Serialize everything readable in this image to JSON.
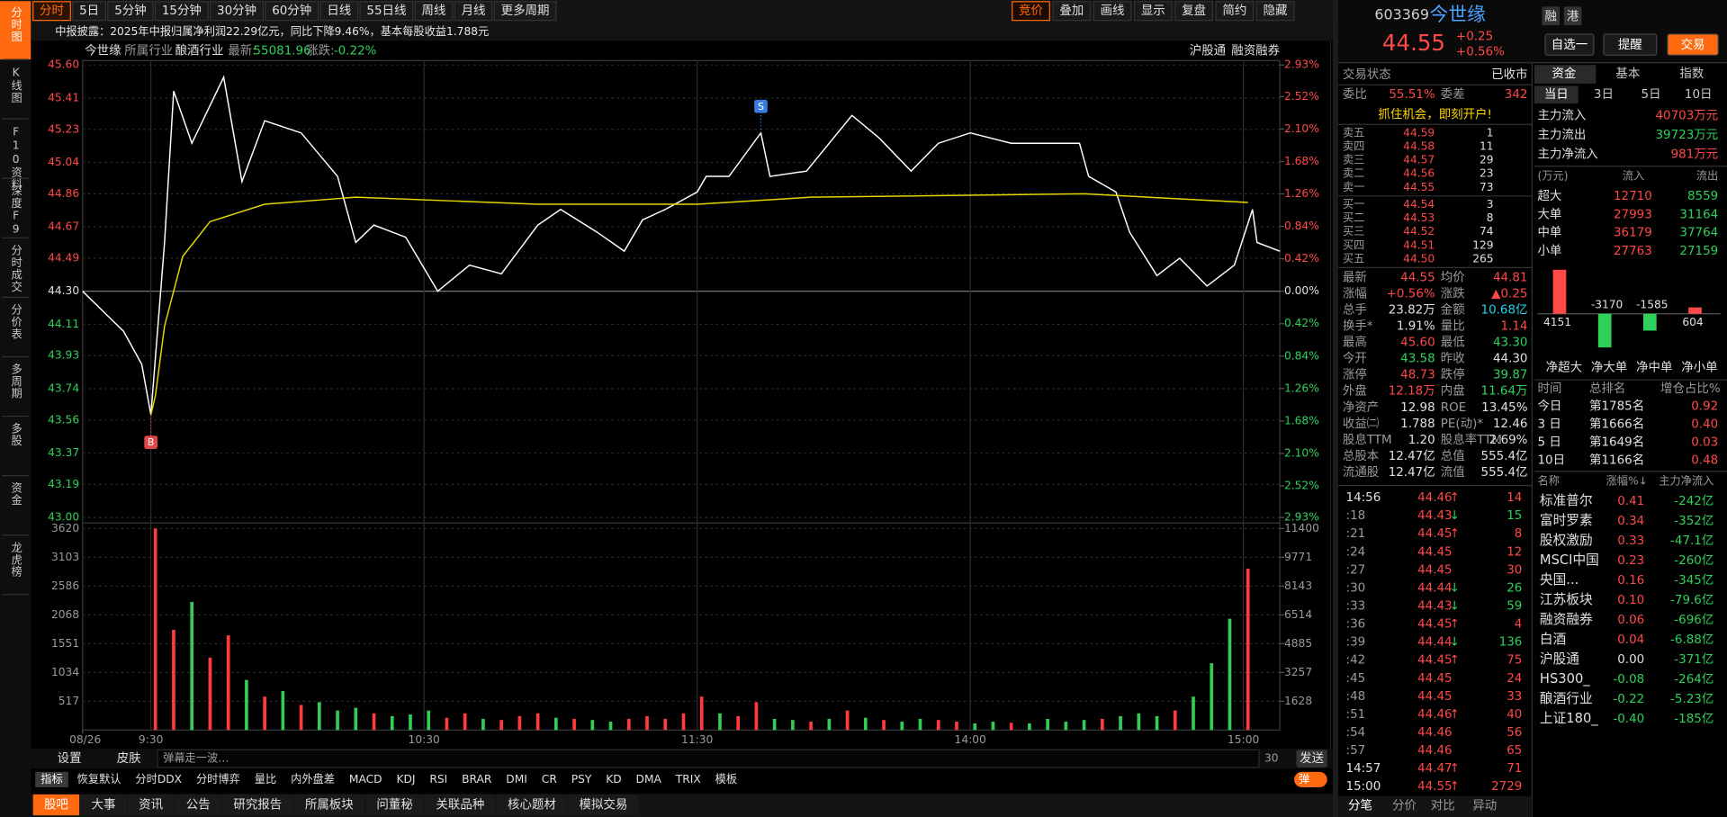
{
  "toolbar": {
    "periods": [
      "分时",
      "5日",
      "5分钟",
      "15分钟",
      "30分钟",
      "60分钟",
      "日线",
      "55日线",
      "周线",
      "月线",
      "更多周期"
    ],
    "tools": [
      "竞价",
      "叠加",
      "画线",
      "显示",
      "复盘",
      "简约",
      "隐藏"
    ]
  },
  "sidebar": [
    "分时图",
    "K线图",
    "F10资料",
    "深度F9",
    "分时成交",
    "分价表",
    "多周期",
    "多股",
    "资金",
    "龙虎榜"
  ],
  "news": "中报披露：2025年中报归属净利润22.29亿元，同比下降9.46%，基本每股收益1.788元",
  "chart_header": {
    "stock": "今世缘",
    "industry_label": "所属行业",
    "industry": "酿酒行业",
    "latest_label": "最新:",
    "latest": "55081.96",
    "change_label": "涨跌:",
    "change": "-0.22%",
    "links": [
      "沪股通",
      "融资融券"
    ]
  },
  "chart_data": [
    {
      "type": "line",
      "xlim": [
        0,
        263
      ],
      "xticks": [
        {
          "value": 0,
          "label": "08/26"
        },
        {
          "value": 15,
          "label": "9:30"
        },
        {
          "value": 75,
          "label": "10:30"
        },
        {
          "value": 135,
          "label": "11:30"
        },
        {
          "value": 195,
          "label": "14:00"
        },
        {
          "value": 255,
          "label": "15:00"
        }
      ],
      "ylim": [
        43.0,
        45.6
      ],
      "yticks": [
        {
          "value": 45.6,
          "label": "45.60"
        },
        45.41,
        45.23,
        45.04,
        44.86,
        44.67,
        44.49,
        {
          "value": 44.3,
          "label": "44.30"
        },
        44.11,
        43.93,
        43.74,
        43.56,
        43.37,
        43.19,
        {
          "value": 43.0,
          "label": "43.00"
        }
      ],
      "y2lim": [
        -2.93,
        2.93
      ],
      "y2ticks": [
        {
          "value": 2.93,
          "label": "2.93%"
        },
        {
          "value": 2.52,
          "label": "2.52%"
        },
        {
          "value": 2.1,
          "label": "2.10%"
        },
        {
          "value": 1.68,
          "label": "1.68%"
        },
        {
          "value": 1.26,
          "label": "1.26%"
        },
        {
          "value": 0.84,
          "label": "0.84%"
        },
        {
          "value": 0.42,
          "label": "0.42%"
        },
        {
          "value": 0,
          "label": "0.00%"
        },
        {
          "value": -0.42,
          "label": "0.42%"
        },
        {
          "value": -0.84,
          "label": "0.84%"
        },
        {
          "value": -1.26,
          "label": "1.26%"
        },
        {
          "value": -1.68,
          "label": "1.68%"
        },
        {
          "value": -2.1,
          "label": "2.10%"
        },
        {
          "value": -2.52,
          "label": "2.52%"
        },
        {
          "value": -2.93,
          "label": "2.93%"
        }
      ],
      "grid": true,
      "series": [
        {
          "color": "#ffffff",
          "x": [
            0,
            9,
            13,
            15,
            18,
            20,
            24,
            31,
            35,
            40,
            48,
            56,
            60,
            64,
            71,
            78,
            85,
            92,
            100,
            105,
            113,
            119,
            123,
            128,
            135,
            137,
            142,
            149,
            151,
            159,
            169,
            175,
            182,
            188,
            195,
            204,
            219,
            221,
            227,
            230,
            236,
            241,
            247,
            253,
            257,
            258,
            263
          ],
          "values": [
            44.3,
            44.07,
            43.88,
            43.59,
            44.58,
            45.45,
            45.15,
            45.53,
            44.93,
            45.28,
            45.21,
            44.96,
            44.58,
            44.68,
            44.61,
            44.3,
            44.45,
            44.4,
            44.68,
            44.77,
            44.64,
            44.53,
            44.71,
            44.77,
            44.87,
            44.96,
            44.96,
            45.21,
            44.96,
            44.99,
            45.31,
            45.18,
            44.99,
            45.15,
            45.21,
            45.15,
            45.15,
            44.96,
            44.87,
            44.64,
            44.39,
            44.49,
            44.33,
            44.45,
            44.77,
            44.58,
            44.53
          ]
        },
        {
          "color": "#e6d600",
          "x": [
            15,
            16,
            18,
            22,
            28,
            40,
            60,
            100,
            135,
            160,
            220,
            256
          ],
          "values": [
            43.59,
            43.7,
            44.1,
            44.5,
            44.7,
            44.8,
            44.84,
            44.8,
            44.8,
            44.84,
            44.86,
            44.81
          ]
        }
      ],
      "markers": [
        {
          "label": "B",
          "x": 15,
          "value": 43.59,
          "color": "#e04848"
        },
        {
          "label": "S",
          "x": 149,
          "value": 45.21,
          "color": "#3a7be0"
        }
      ],
      "vlim": [
        0,
        3620
      ],
      "vticks": [
        517,
        1034,
        1551,
        2068,
        2586,
        3103,
        3620
      ],
      "v2lim": [
        0,
        11400
      ],
      "v2ticks": [
        1628,
        3257,
        4885,
        6514,
        8143,
        9771,
        11400
      ],
      "volume": {
        "x": [
          16,
          20,
          24,
          28,
          32,
          36,
          40,
          44,
          48,
          52,
          56,
          60,
          64,
          68,
          72,
          76,
          80,
          84,
          88,
          92,
          96,
          100,
          104,
          108,
          112,
          116,
          120,
          124,
          128,
          132,
          136,
          140,
          144,
          148,
          152,
          156,
          160,
          164,
          168,
          172,
          176,
          180,
          184,
          188,
          192,
          196,
          200,
          204,
          208,
          212,
          216,
          220,
          224,
          228,
          232,
          236,
          240,
          244,
          248,
          252,
          256
        ],
        "values": [
          3620,
          1800,
          2300,
          1300,
          1700,
          900,
          600,
          700,
          450,
          500,
          350,
          400,
          300,
          250,
          280,
          350,
          220,
          300,
          200,
          180,
          250,
          300,
          220,
          200,
          180,
          150,
          200,
          250,
          200,
          300,
          600,
          300,
          250,
          500,
          200,
          180,
          150,
          200,
          350,
          220,
          180,
          150,
          200,
          180,
          150,
          120,
          150,
          130,
          120,
          200,
          150,
          180,
          200,
          250,
          300,
          250,
          350,
          600,
          1200,
          2000,
          2900
        ],
        "colors": [
          "#ff3b3b",
          "#ff3b3b",
          "#33cc55",
          "#ff3b3b",
          "#ff3b3b",
          "#33cc55",
          "#ff3b3b",
          "#33cc55",
          "#ff3b3b",
          "#33cc55",
          "#33cc55",
          "#33cc55",
          "#ff3b3b",
          "#33cc55",
          "#33cc55",
          "#33cc55",
          "#ff3b3b",
          "#ff3b3b",
          "#33cc55",
          "#ff3b3b",
          "#ff3b3b",
          "#ff3b3b",
          "#33cc55",
          "#ff3b3b",
          "#33cc55",
          "#33cc55",
          "#ff3b3b",
          "#ff3b3b",
          "#ff3b3b",
          "#ff3b3b",
          "#ff3b3b",
          "#33cc55",
          "#ff3b3b",
          "#ff3b3b",
          "#33cc55",
          "#33cc55",
          "#ff3b3b",
          "#33cc55",
          "#ff3b3b",
          "#33cc55",
          "#ff3b3b",
          "#33cc55",
          "#33cc55",
          "#ff3b3b",
          "#ff3b3b",
          "#33cc55",
          "#33cc55",
          "#ff3b3b",
          "#33cc55",
          "#33cc55",
          "#33cc55",
          "#33cc55",
          "#ff3b3b",
          "#33cc55",
          "#33cc55",
          "#33cc55",
          "#ff3b3b",
          "#33cc55",
          "#33cc55",
          "#33cc55",
          "#ff3b3b"
        ]
      }
    },
    {
      "type": "bar",
      "categories": [
        "净超大",
        "净大单",
        "净中单",
        "净小单"
      ],
      "values": [
        4151,
        -3170,
        -1585,
        604
      ],
      "colors": [
        "#ff4848",
        "#2ed15a",
        "#2ed15a",
        "#ff4848"
      ]
    }
  ],
  "bottom_bar": {
    "settings": "设置",
    "skin": "皮肤",
    "danmu": "弹幕走一波…",
    "count": "30",
    "send": "发送"
  },
  "indicators": [
    "指标",
    "恢复默认",
    "分时DDX",
    "分时博弈",
    "量比",
    "内外盘差",
    "MACD",
    "KDJ",
    "RSI",
    "BRAR",
    "DMI",
    "CR",
    "PSY",
    "KD",
    "DMA",
    "TRIX",
    "模板"
  ],
  "toggle": "弹",
  "bottom_tabs": [
    "股吧",
    "大事",
    "资讯",
    "公告",
    "研究报告",
    "所属板块",
    "问董秘",
    "关联品种",
    "核心题材",
    "模拟交易"
  ],
  "quote": {
    "code": "603369",
    "name": "今世缘",
    "badges": [
      "融",
      "港"
    ],
    "price": "44.55",
    "change": "+0.25",
    "pct": "+0.56%",
    "buttons": [
      "自选一",
      "提醒",
      "交易"
    ]
  },
  "orderbook": {
    "status_label": "交易状态",
    "status": "已收市",
    "ratio_label": "委比",
    "ratio": "55.51%",
    "diff_label": "委差",
    "diff": "342",
    "promo": "抓住机会，即刻开户!",
    "asks": [
      [
        "卖五",
        "44.59",
        "1"
      ],
      [
        "卖四",
        "44.58",
        "11"
      ],
      [
        "卖三",
        "44.57",
        "29"
      ],
      [
        "卖二",
        "44.56",
        "23"
      ],
      [
        "卖一",
        "44.55",
        "73"
      ]
    ],
    "bids": [
      [
        "买一",
        "44.54",
        "3"
      ],
      [
        "买二",
        "44.53",
        "8"
      ],
      [
        "买三",
        "44.52",
        "74"
      ],
      [
        "买四",
        "44.51",
        "129"
      ],
      [
        "买五",
        "44.50",
        "265"
      ]
    ]
  },
  "stats": [
    [
      "最新",
      "44.55",
      "均价",
      "44.81"
    ],
    [
      "涨幅",
      "+0.56%",
      "涨跌",
      "▲0.25"
    ],
    [
      "总手",
      "23.82万",
      "金额",
      "10.68亿"
    ],
    [
      "换手*",
      "1.91%",
      "量比",
      "1.14"
    ],
    [
      "最高",
      "45.60",
      "最低",
      "43.30"
    ],
    [
      "今开",
      "43.58",
      "昨收",
      "44.30"
    ],
    [
      "涨停",
      "48.73",
      "跌停",
      "39.87"
    ],
    [
      "外盘",
      "12.18万",
      "内盘",
      "11.64万"
    ],
    [
      "净资产",
      "12.98",
      "ROE",
      "13.45%"
    ],
    [
      "收益㈡",
      "1.788",
      "PE(动)*",
      "12.46"
    ],
    [
      "股息TTM",
      "1.20",
      "股息率TTM",
      "2.69%"
    ],
    [
      "总股本",
      "12.47亿",
      "总值",
      "555.4亿"
    ],
    [
      "流通股",
      "12.47亿",
      "流值",
      "555.4亿"
    ]
  ],
  "trades": [
    [
      "14:56",
      "44.46",
      "↑",
      "14"
    ],
    [
      ":18",
      "44.43",
      "↓",
      "15"
    ],
    [
      ":21",
      "44.45",
      "↑",
      "8"
    ],
    [
      ":24",
      "44.45",
      "",
      "12"
    ],
    [
      ":27",
      "44.45",
      "",
      "30"
    ],
    [
      ":30",
      "44.44",
      "↓",
      "26"
    ],
    [
      ":33",
      "44.43",
      "↓",
      "59"
    ],
    [
      ":36",
      "44.45",
      "↑",
      "4"
    ],
    [
      ":39",
      "44.44",
      "↓",
      "136"
    ],
    [
      ":42",
      "44.45",
      "↑",
      "75"
    ],
    [
      ":45",
      "44.45",
      "",
      "24"
    ],
    [
      ":48",
      "44.45",
      "",
      "33"
    ],
    [
      ":51",
      "44.46",
      "↑",
      "40"
    ],
    [
      ":54",
      "44.46",
      "",
      "56"
    ],
    [
      ":57",
      "44.46",
      "",
      "65"
    ],
    [
      "14:57",
      "44.47",
      "↑",
      "71"
    ],
    [
      "15:00",
      "44.55",
      "↑",
      "2729"
    ]
  ],
  "trade_tabs": [
    "分笔",
    "分价",
    "对比",
    "异动"
  ],
  "fund": {
    "tabs": [
      "资金",
      "基本",
      "指数"
    ],
    "periods": [
      "当日",
      "3日",
      "5日",
      "10日"
    ],
    "main": [
      [
        "主力流入",
        "40703万元"
      ],
      [
        "主力流出",
        "39723万元"
      ],
      [
        "主力净流入",
        "981万元"
      ]
    ],
    "header": [
      "(万元)",
      "流入",
      "流出"
    ],
    "rows": [
      [
        "超大",
        "12710",
        "8559"
      ],
      [
        "大单",
        "27993",
        "31164"
      ],
      [
        "中单",
        "36179",
        "37764"
      ],
      [
        "小单",
        "27763",
        "27159"
      ]
    ]
  },
  "ranking": {
    "header": [
      "时间",
      "总排名",
      "增仓占比%"
    ],
    "rows": [
      [
        "今日",
        "第1785名",
        "0.92"
      ],
      [
        "3 日",
        "第1666名",
        "0.40"
      ],
      [
        "5 日",
        "第1649名",
        "0.03"
      ],
      [
        "10日",
        "第1166名",
        "0.48"
      ]
    ]
  },
  "index": {
    "header": [
      "名称",
      "涨幅%↓",
      "主力净流入"
    ],
    "rows": [
      [
        "标准普尔",
        "0.41",
        "-242亿"
      ],
      [
        "富时罗素",
        "0.34",
        "-352亿"
      ],
      [
        "股权激励",
        "0.33",
        "-47.1亿"
      ],
      [
        "MSCI中国",
        "0.23",
        "-260亿"
      ],
      [
        "央国...",
        "0.16",
        "-345亿"
      ],
      [
        "江苏板块",
        "0.10",
        "-79.6亿"
      ],
      [
        "融资融券",
        "0.06",
        "-696亿"
      ],
      [
        "白酒",
        "0.04",
        "-6.88亿"
      ],
      [
        "沪股通",
        "0.00",
        "-371亿"
      ],
      [
        "HS300_",
        "-0.08",
        "-264亿"
      ],
      [
        "酿酒行业",
        "-0.22",
        "-5.23亿"
      ],
      [
        "上证180_",
        "-0.40",
        "-185亿"
      ]
    ]
  }
}
